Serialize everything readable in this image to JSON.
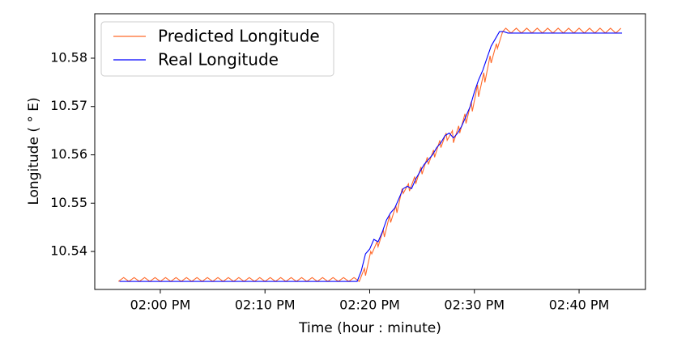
{
  "chart_data": {
    "type": "line",
    "xlabel": "Time (hour : minute)",
    "ylabel": "Longitude ( ° E)",
    "xlim": [
      833.74,
      886.34
    ],
    "xticks": [
      {
        "value": 840,
        "label": "02:00 PM"
      },
      {
        "value": 850,
        "label": "02:10 PM"
      },
      {
        "value": 860,
        "label": "02:20 PM"
      },
      {
        "value": 870,
        "label": "02:30 PM"
      },
      {
        "value": 880,
        "label": "02:40 PM"
      }
    ],
    "ylim": [
      10.53214,
      10.5892
    ],
    "yticks": [
      10.54,
      10.55,
      10.56,
      10.57,
      10.58
    ],
    "grid": false,
    "legend": "upper left",
    "series": [
      {
        "name": "Predicted Longitude",
        "color": "#ff6a2b",
        "x": [
          836.0,
          836.5,
          837.0,
          837.5,
          838.0,
          838.5,
          839.0,
          839.5,
          840.0,
          840.5,
          841.0,
          841.5,
          842.0,
          842.5,
          843.0,
          843.5,
          844.0,
          844.5,
          845.0,
          845.5,
          846.0,
          846.5,
          847.0,
          847.5,
          848.0,
          848.5,
          849.0,
          849.5,
          850.0,
          850.5,
          851.0,
          851.5,
          852.0,
          852.5,
          853.0,
          853.5,
          854.0,
          854.5,
          855.0,
          855.5,
          856.0,
          856.5,
          857.0,
          857.5,
          858.0,
          858.5,
          859.0,
          859.5,
          859.6,
          860.1,
          860.2,
          860.7,
          860.8,
          861.3,
          861.4,
          861.9,
          862.0,
          862.5,
          862.6,
          863.1,
          863.2,
          863.7,
          863.8,
          864.3,
          864.4,
          864.9,
          865.0,
          865.5,
          865.6,
          866.1,
          866.2,
          866.7,
          866.8,
          867.3,
          867.4,
          867.9,
          868.0,
          868.5,
          868.6,
          869.1,
          869.2,
          869.7,
          869.8,
          870.3,
          870.4,
          870.9,
          871.0,
          871.5,
          871.6,
          872.1,
          872.2,
          872.7,
          873.0,
          873.5,
          874.0,
          874.5,
          875.0,
          875.5,
          876.0,
          876.5,
          877.0,
          877.5,
          878.0,
          878.5,
          879.0,
          879.5,
          880.0,
          880.5,
          881.0,
          881.5,
          882.0,
          882.5,
          883.0,
          883.5,
          884.0
        ],
        "values": [
          10.5338,
          10.5346,
          10.5338,
          10.5346,
          10.5338,
          10.5346,
          10.5338,
          10.5346,
          10.5338,
          10.5346,
          10.5338,
          10.5346,
          10.5338,
          10.5346,
          10.5338,
          10.5346,
          10.5338,
          10.5346,
          10.5338,
          10.5346,
          10.5338,
          10.5346,
          10.5338,
          10.5346,
          10.5338,
          10.5346,
          10.5338,
          10.5346,
          10.5338,
          10.5346,
          10.5338,
          10.5346,
          10.5338,
          10.5346,
          10.5338,
          10.5346,
          10.5338,
          10.5346,
          10.5338,
          10.5346,
          10.5338,
          10.5346,
          10.5338,
          10.5346,
          10.5338,
          10.5346,
          10.5338,
          10.5365,
          10.535,
          10.54,
          10.5395,
          10.542,
          10.541,
          10.5445,
          10.543,
          10.5475,
          10.546,
          10.5495,
          10.548,
          10.553,
          10.552,
          10.554,
          10.5525,
          10.5555,
          10.554,
          10.5575,
          10.556,
          10.5595,
          10.558,
          10.561,
          10.5595,
          10.563,
          10.5615,
          10.5645,
          10.563,
          10.565,
          10.5625,
          10.566,
          10.5645,
          10.5685,
          10.5665,
          10.571,
          10.569,
          10.5745,
          10.572,
          10.577,
          10.575,
          10.5805,
          10.579,
          10.583,
          10.582,
          10.5855,
          10.5862,
          10.5852,
          10.5862,
          10.5852,
          10.5862,
          10.5852,
          10.5862,
          10.5852,
          10.5862,
          10.5852,
          10.5862,
          10.5852,
          10.5862,
          10.5852,
          10.5862,
          10.5852,
          10.5862,
          10.5852,
          10.5862,
          10.5852,
          10.5862,
          10.5852,
          10.5862
        ]
      },
      {
        "name": "Real Longitude",
        "color": "#0000ff",
        "x": [
          836.1,
          858.8,
          859.2,
          859.6,
          860.0,
          860.4,
          860.8,
          861.2,
          861.6,
          862.0,
          862.4,
          862.8,
          863.2,
          863.6,
          864.0,
          864.4,
          864.8,
          865.2,
          865.6,
          866.0,
          866.4,
          866.8,
          867.2,
          867.6,
          868.0,
          868.4,
          868.8,
          869.2,
          869.6,
          870.0,
          870.4,
          870.8,
          871.2,
          871.6,
          872.0,
          872.4,
          872.8,
          873.2,
          884.1
        ],
        "values": [
          10.5338,
          10.5338,
          10.536,
          10.5395,
          10.5405,
          10.5425,
          10.542,
          10.544,
          10.5465,
          10.548,
          10.549,
          10.551,
          10.553,
          10.5535,
          10.553,
          10.555,
          10.5565,
          10.558,
          10.559,
          10.56,
          10.5615,
          10.5625,
          10.564,
          10.5645,
          10.5635,
          10.5645,
          10.566,
          10.568,
          10.57,
          10.573,
          10.5755,
          10.5775,
          10.58,
          10.5825,
          10.584,
          10.5855,
          10.5855,
          10.5852,
          10.5852
        ]
      }
    ]
  }
}
